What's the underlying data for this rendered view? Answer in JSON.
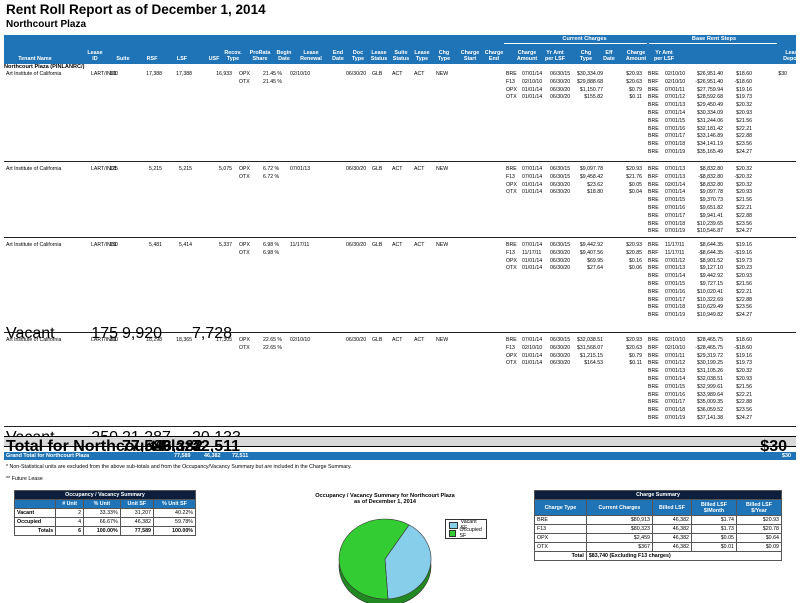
{
  "report": {
    "title": "Rent Roll Report as of December 1, 2014",
    "subtitle": "Northcourt Plaza"
  },
  "header": {
    "group_current": "Current Charges",
    "group_base": "Base Rent Steps",
    "columns": [
      "Tenant Name",
      "Lease ID",
      "Suite",
      "RSF",
      "LSF",
      "USF",
      "Recov.\nType",
      "ProRata\nShare",
      "Begin\nDate",
      "Lease\nRenewal",
      "End\nDate",
      "Doc\nType",
      "Lease\nStatus",
      "Suite\nStatus",
      "Lease\nType",
      "Chg\nType",
      "Charge\nStart",
      "Charge\nEnd",
      "Charge\nAmount",
      "Yr Amt\nper LSF",
      "Chg\nType",
      "Eff\nDate",
      "Charge\nAmount",
      "Yr Amt\nper LSF",
      "Lease\nDeposit"
    ]
  },
  "property_label": "Northcourt Plaza (PINLANRC/)",
  "tenants": [
    {
      "name": "Art Institute of California",
      "lease_id": "LART/IN01",
      "suite": "100",
      "rsf": "17,388",
      "lsf": "17,388",
      "usf": "16,933",
      "recov": [
        "OPX",
        "OTX"
      ],
      "prorata": [
        "21.45 %",
        "21.45 %"
      ],
      "begin": "02/10/10",
      "renewal": "",
      "end": "06/30/20",
      "doc": "GLB",
      "lease_status": "ACT",
      "suite_status": "ACT",
      "lease_type": "NEW",
      "charges": [
        [
          "BRE",
          "07/01/14",
          "06/30/15",
          "$30,334.09",
          "$20.93"
        ],
        [
          "F13",
          "02/10/10",
          "06/30/20",
          "$29,888.68",
          "$20.63"
        ],
        [
          "OPX",
          "01/01/14",
          "06/30/20",
          "$1,150.77",
          "$0.79"
        ],
        [
          "OTX",
          "01/01/14",
          "06/30/20",
          "$155.82",
          "$0.11"
        ]
      ],
      "steps": [
        [
          "BRE",
          "02/10/10",
          "$26,951.40",
          "$18.60"
        ],
        [
          "BRF",
          "02/10/10",
          "-$26,951.40",
          "-$18.60"
        ],
        [
          "BRE",
          "07/01/11",
          "$27,759.94",
          "$19.16"
        ],
        [
          "BRE",
          "07/01/12",
          "$28,592.68",
          "$19.73"
        ],
        [
          "BRE",
          "07/01/13",
          "$29,450.49",
          "$20.32"
        ],
        [
          "BRE",
          "07/01/14",
          "$30,334.09",
          "$20.93"
        ],
        [
          "BRE",
          "07/01/15",
          "$31,244.06",
          "$21.56"
        ],
        [
          "BRE",
          "07/01/16",
          "$32,181.42",
          "$22.21"
        ],
        [
          "BRE",
          "07/01/17",
          "$33,146.89",
          "$22.88"
        ],
        [
          "BRE",
          "07/01/18",
          "$34,141.19",
          "$23.56"
        ],
        [
          "BRE",
          "07/01/19",
          "$35,165.49",
          "$24.27"
        ]
      ],
      "deposit": "$30"
    },
    {
      "name": "Art Institute of California",
      "lease_id": "LART/IN01",
      "suite": "125",
      "rsf": "5,215",
      "lsf": "5,215",
      "usf": "5,075",
      "recov": [
        "OPX",
        "OTX"
      ],
      "prorata": [
        "6.72 %",
        "6.72 %"
      ],
      "begin": "07/01/13",
      "renewal": "",
      "end": "06/30/20",
      "doc": "GLB",
      "lease_status": "ACT",
      "suite_status": "ACT",
      "lease_type": "NEW",
      "charges": [
        [
          "BRE",
          "07/01/14",
          "06/30/15",
          "$9,097.78",
          "$20.93"
        ],
        [
          "F13",
          "07/01/14",
          "06/30/15",
          "$9,458.42",
          "$21.76"
        ],
        [
          "OPX",
          "01/01/14",
          "06/30/20",
          "$23.62",
          "$0.05"
        ],
        [
          "OTX",
          "01/01/14",
          "06/30/20",
          "$18.80",
          "$0.04"
        ]
      ],
      "steps": [
        [
          "BRE",
          "07/01/13",
          "$8,832.80",
          "$20.32"
        ],
        [
          "BRF",
          "07/01/13",
          "-$8,832.80",
          "-$20.32"
        ],
        [
          "BRE",
          "02/01/14",
          "$8,832.80",
          "$20.32"
        ],
        [
          "BRE",
          "07/01/14",
          "$9,097.78",
          "$20.93"
        ],
        [
          "BRE",
          "07/01/15",
          "$9,370.73",
          "$21.56"
        ],
        [
          "BRE",
          "07/01/16",
          "$9,651.82",
          "$22.21"
        ],
        [
          "BRE",
          "07/01/17",
          "$9,941.41",
          "$22.88"
        ],
        [
          "BRE",
          "07/01/18",
          "$10,239.65",
          "$23.56"
        ],
        [
          "BRE",
          "07/01/19",
          "$10,546.87",
          "$24.27"
        ]
      ],
      "deposit": ""
    },
    {
      "name": "Art Institute of California",
      "lease_id": "LART/IN01",
      "suite": "150",
      "rsf": "5,481",
      "lsf": "5,414",
      "usf": "5,337",
      "recov": [
        "OPX",
        "OTX"
      ],
      "prorata": [
        "6.98 %",
        "6.98 %"
      ],
      "begin": "11/17/11",
      "renewal": "",
      "end": "06/30/20",
      "doc": "GLB",
      "lease_status": "ACT",
      "suite_status": "ACT",
      "lease_type": "NEW",
      "charges": [
        [
          "BRE",
          "07/01/14",
          "06/30/15",
          "$9,442.92",
          "$20.93"
        ],
        [
          "F13",
          "11/17/11",
          "06/30/20",
          "$9,407.56",
          "$20.85"
        ],
        [
          "OPX",
          "01/01/14",
          "06/30/20",
          "$69.95",
          "$0.16"
        ],
        [
          "OTX",
          "01/01/14",
          "06/30/20",
          "$27.64",
          "$0.06"
        ]
      ],
      "steps": [
        [
          "BRE",
          "11/17/11",
          "$8,644.35",
          "$19.16"
        ],
        [
          "BRF",
          "11/17/11",
          "-$8,644.35",
          "-$19.16"
        ],
        [
          "BRE",
          "07/01/12",
          "$8,901.52",
          "$19.73"
        ],
        [
          "BRE",
          "07/01/13",
          "$9,127.10",
          "$20.23"
        ],
        [
          "BRE",
          "07/01/14",
          "$9,442.92",
          "$20.93"
        ],
        [
          "BRE",
          "07/01/15",
          "$9,727.15",
          "$21.56"
        ],
        [
          "BRE",
          "07/01/16",
          "$10,020.41",
          "$22.21"
        ],
        [
          "BRE",
          "07/01/17",
          "$10,322.69",
          "$22.88"
        ],
        [
          "BRE",
          "07/01/18",
          "$10,629.49",
          "$23.56"
        ],
        [
          "BRE",
          "07/01/19",
          "$10,949.82",
          "$24.27"
        ]
      ],
      "deposit": ""
    },
    {
      "name": "Art Institute of California",
      "lease_id": "LART/IN01",
      "suite": "200",
      "rsf": "18,298",
      "lsf": "18,365",
      "usf": "17,305",
      "recov": [
        "OPX",
        "OTX"
      ],
      "prorata": [
        "22.65 %",
        "22.65 %"
      ],
      "begin": "02/10/10",
      "renewal": "",
      "end": "06/30/20",
      "doc": "GLB",
      "lease_status": "ACT",
      "suite_status": "ACT",
      "lease_type": "NEW",
      "charges": [
        [
          "BRE",
          "07/01/14",
          "06/30/15",
          "$32,038.51",
          "$20.93"
        ],
        [
          "F13",
          "02/10/10",
          "06/30/20",
          "$31,568.07",
          "$20.63"
        ],
        [
          "OPX",
          "01/01/14",
          "06/30/20",
          "$1,215.15",
          "$0.79"
        ],
        [
          "OTX",
          "01/01/14",
          "06/30/20",
          "$164.53",
          "$0.11"
        ]
      ],
      "steps": [
        [
          "BRE",
          "02/10/10",
          "$28,465.75",
          "$18.60"
        ],
        [
          "BRF",
          "02/10/10",
          "-$28,465.75",
          "-$18.60"
        ],
        [
          "BRE",
          "07/01/11",
          "$29,319.72",
          "$19.16"
        ],
        [
          "BRE",
          "07/01/12",
          "$30,199.25",
          "$19.73"
        ],
        [
          "BRE",
          "07/01/13",
          "$31,105.26",
          "$20.32"
        ],
        [
          "BRE",
          "07/01/14",
          "$32,038.51",
          "$20.93"
        ],
        [
          "BRE",
          "07/01/15",
          "$32,999.61",
          "$21.56"
        ],
        [
          "BRE",
          "07/01/16",
          "$33,989.64",
          "$22.21"
        ],
        [
          "BRE",
          "07/01/17",
          "$35,009.35",
          "$22.88"
        ],
        [
          "BRE",
          "07/01/18",
          "$36,059.52",
          "$23.56"
        ],
        [
          "BRE",
          "07/01/19",
          "$37,141.38",
          "$24.27"
        ]
      ],
      "deposit": ""
    }
  ],
  "vacant_mid": {
    "label": "Vacant",
    "suite": "175",
    "rsf": "9,920",
    "usf": "7,728"
  },
  "vacant_total": {
    "label": "Vacant",
    "suite": "250",
    "rsf": "21,287",
    "usf": "20,133"
  },
  "total_row": {
    "label": "Total for Northcourt Plaza",
    "rsf": "77,589",
    "lsf": "46,382",
    "usf": "72,511",
    "deposit": "$30"
  },
  "grand_total": {
    "label": "Grand Total for Northcourt Plaza",
    "rsf": "77,589",
    "lsf": "46,382",
    "usf": "72,511",
    "deposit": "$30"
  },
  "notes": [
    "* Non-Statistical units are excluded from the above sub-totals and from the Occupancy/Vacancy Summary but are included in the Charge Summary.",
    "** Future Lease"
  ],
  "occupancy_summary": {
    "title": "Occupancy / Vacancy Summary",
    "headers": [
      "# Unit",
      "% Unit",
      "Unit SF",
      "% Unit SF"
    ],
    "rows": [
      [
        "Vacant",
        "2",
        "33.33%",
        "31,207",
        "40.22%"
      ],
      [
        "Occupied",
        "4",
        "66.67%",
        "46,382",
        "59.78%"
      ],
      [
        "Totals",
        "6",
        "100.00%",
        "77,589",
        "100.00%"
      ]
    ]
  },
  "pie": {
    "title_line1": "Occupancy / Vacancy Summary for Northcourt Plaza",
    "title_line2": "as of December 1, 2014"
  },
  "chart_data": {
    "type": "pie",
    "categories": [
      "Vacant SF",
      "Occupied SF"
    ],
    "values": [
      31207,
      46382
    ],
    "colors": [
      "#87ceeb",
      "#33cc33"
    ]
  },
  "charge_summary": {
    "title": "Charge Summary",
    "headers": [
      "Charge Type",
      "Current Charges",
      "Billed LSF",
      "Billed LSF $/Month",
      "Billed LSF $/Year"
    ],
    "rows": [
      [
        "BRE",
        "$80,913",
        "46,382",
        "$1.74",
        "$20.93"
      ],
      [
        "F13",
        "$80,323",
        "46,382",
        "$1.73",
        "$20.78"
      ],
      [
        "OPX",
        "$2,459",
        "46,382",
        "$0.05",
        "$0.64"
      ],
      [
        "OTX",
        "$367",
        "46,382",
        "$0.01",
        "$0.09"
      ]
    ],
    "total_label": "Total",
    "total_value": "$83,740 (Excluding F13 charges)"
  }
}
